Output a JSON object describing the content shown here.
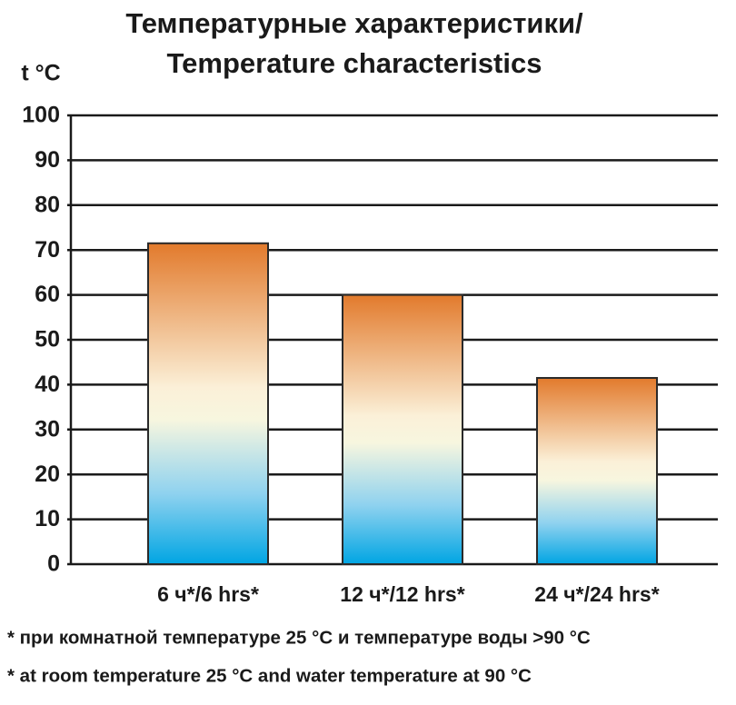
{
  "chart_data": {
    "type": "bar",
    "title": [
      "Температурные характеристики/",
      "Temperature characteristics"
    ],
    "y_label": "t °C",
    "categories": [
      "6 ч*/6 hrs*",
      "12 ч*/12 hrs*",
      "24 ч*/24 hrs*"
    ],
    "values": [
      71.5,
      60,
      41.5
    ],
    "ylim": [
      0,
      100
    ],
    "yticks": [
      0,
      10,
      20,
      30,
      40,
      50,
      60,
      70,
      80,
      90,
      100
    ],
    "grid": true,
    "colors": [
      "#e27a2c",
      "#fbf0d8",
      "#f7f6df",
      "#8fd2ef",
      "#00a5e3"
    ],
    "notes": [
      "* при комнатной температуре 25 °C и температуре воды >90 °C",
      "* at room temperature 25 °C and water temperature at 90 °C"
    ]
  }
}
